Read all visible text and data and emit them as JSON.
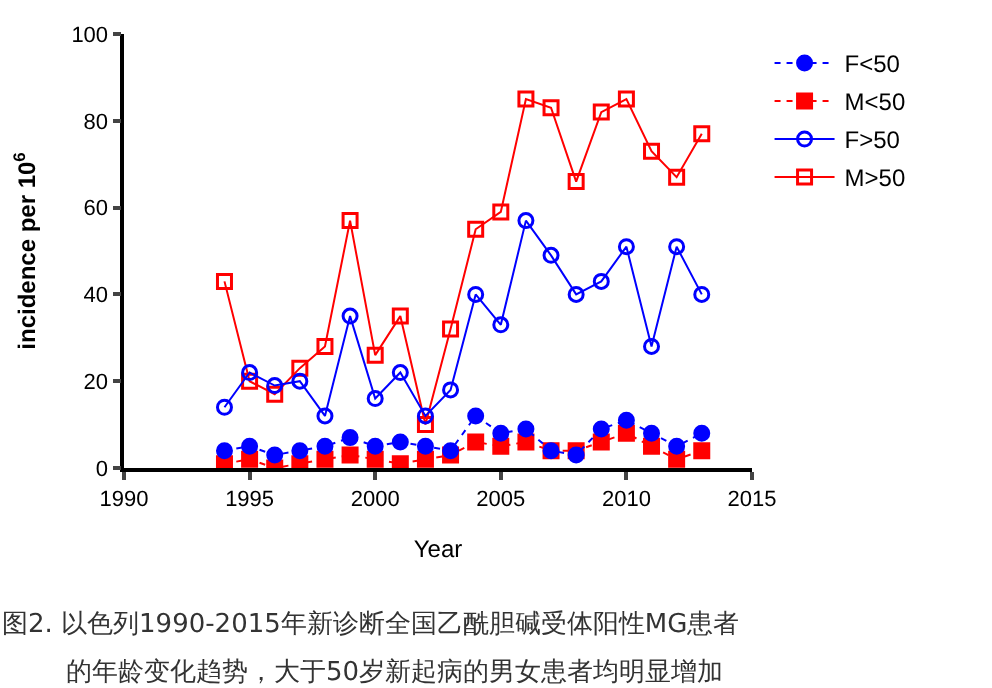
{
  "chart_data": {
    "type": "line",
    "xlabel": "Year",
    "ylabel": "incidence per 10$^{6}$",
    "x": [
      1994,
      1995,
      1996,
      1997,
      1998,
      1999,
      2000,
      2001,
      2002,
      2003,
      2004,
      2005,
      2006,
      2007,
      2008,
      2009,
      2010,
      2011,
      2012,
      2013
    ],
    "xlim": [
      1990,
      2015
    ],
    "xticks": [
      1990,
      1995,
      2000,
      2005,
      2010,
      2015
    ],
    "ylim": [
      0,
      100
    ],
    "yticks": [
      0,
      20,
      40,
      60,
      80,
      100
    ],
    "legend": "top right",
    "series": [
      {
        "name": "F<50",
        "color": "#0000ff",
        "marker": "circle",
        "line_style": "dotted",
        "values": [
          4,
          5,
          3,
          4,
          5,
          7,
          5,
          6,
          5,
          4,
          12,
          8,
          9,
          4,
          3,
          9,
          11,
          8,
          5,
          8
        ]
      },
      {
        "name": "M<50",
        "color": "#ff0000",
        "marker": "square",
        "line_style": "dotted",
        "values": [
          1,
          2,
          0,
          1,
          2,
          3,
          2,
          1,
          2,
          3,
          6,
          5,
          6,
          4,
          4,
          6,
          8,
          5,
          2,
          4
        ]
      },
      {
        "name": "F>50",
        "color": "#0000ff",
        "marker": "circle-open",
        "line_style": "solid",
        "values": [
          14,
          22,
          19,
          20,
          12,
          35,
          16,
          22,
          12,
          18,
          40,
          33,
          57,
          49,
          40,
          43,
          51,
          28,
          51,
          40
        ]
      },
      {
        "name": "M>50",
        "color": "#ff0000",
        "marker": "square-open",
        "line_style": "solid",
        "values": [
          43,
          20,
          17,
          23,
          28,
          57,
          26,
          35,
          10,
          32,
          55,
          59,
          85,
          83,
          66,
          82,
          85,
          73,
          67,
          77
        ]
      }
    ],
    "annotations": [
      "图2. 以色列1990-2015年新诊断全国乙酰胆碱受体阳性MG患者",
      "的年龄变化趋势，大于50岁新起病的男女患者均明显增加"
    ]
  }
}
